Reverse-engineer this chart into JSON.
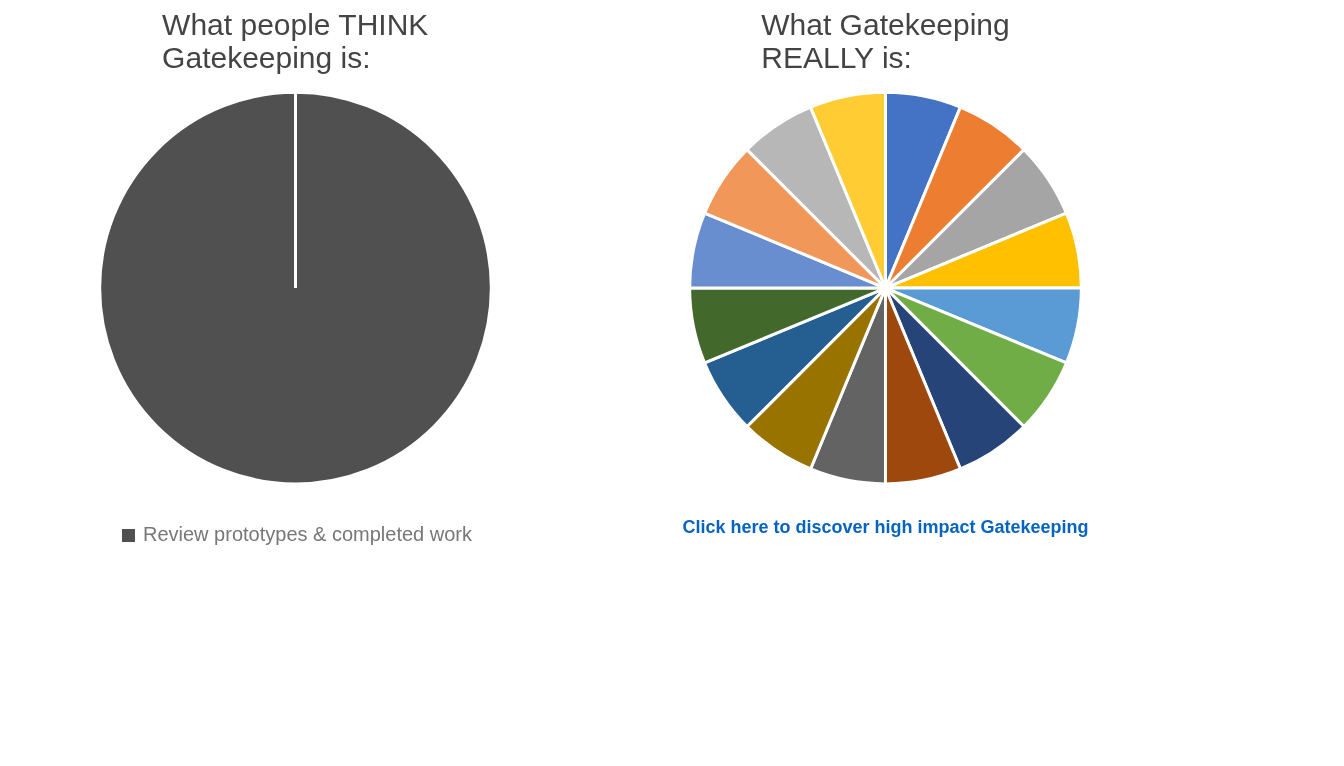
{
  "chart_data": [
    {
      "type": "pie",
      "title": "What people THINK\nGatekeeping is:",
      "categories": [
        "Review prototypes & completed work"
      ],
      "values": [
        100
      ],
      "colors": [
        "#505050"
      ],
      "legend": "bottom"
    },
    {
      "type": "pie",
      "title": "What Gatekeeping\nREALLY is:",
      "categories": [
        null,
        null,
        null,
        null,
        null,
        null,
        null,
        null,
        null,
        null,
        null,
        null,
        null,
        null,
        null,
        null
      ],
      "values": [
        6.25,
        6.25,
        6.25,
        6.25,
        6.25,
        6.25,
        6.25,
        6.25,
        6.25,
        6.25,
        6.25,
        6.25,
        6.25,
        6.25,
        6.25,
        6.25
      ],
      "colors": [
        "#4472c4",
        "#ed7d31",
        "#a5a5a5",
        "#ffc000",
        "#5b9bd5",
        "#70ad47",
        "#264478",
        "#9e480e",
        "#636363",
        "#997300",
        "#255e91",
        "#43682b",
        "#698ed0",
        "#f1975a",
        "#b7b7b7",
        "#ffcd33"
      ],
      "annotations": [
        "Click here to discover high impact Gatekeeping"
      ]
    }
  ]
}
